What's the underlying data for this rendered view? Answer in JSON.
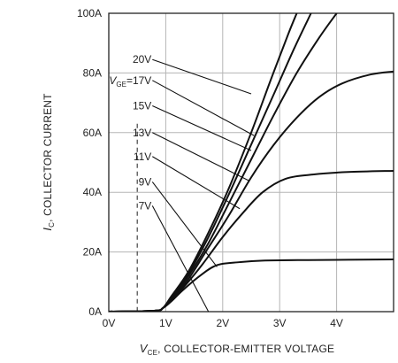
{
  "chart_data": {
    "type": "line",
    "title": "",
    "xlabel": {
      "symbol": "V",
      "subscript": "CE",
      "text": ", COLLECTOR-EMITTER VOLTAGE"
    },
    "ylabel": {
      "symbol": "I",
      "subscript": "C",
      "text": ", COLLECTOR CURRENT"
    },
    "xlim": [
      0,
      5
    ],
    "ylim": [
      0,
      100
    ],
    "xticks": [
      {
        "v": 0,
        "label": "0V"
      },
      {
        "v": 1,
        "label": "1V"
      },
      {
        "v": 2,
        "label": "2V"
      },
      {
        "v": 3,
        "label": "3V"
      },
      {
        "v": 4,
        "label": "4V"
      }
    ],
    "yticks": [
      {
        "v": 0,
        "label": "0A"
      },
      {
        "v": 20,
        "label": "20A"
      },
      {
        "v": 40,
        "label": "40A"
      },
      {
        "v": 60,
        "label": "60A"
      },
      {
        "v": 80,
        "label": "80A"
      },
      {
        "v": 100,
        "label": "100A"
      }
    ],
    "grid": true,
    "dashed_line_x": 0.5,
    "series": [
      {
        "name": "7V",
        "points": [
          [
            0,
            0
          ],
          [
            0.8,
            0.3
          ],
          [
            0.95,
            1.2
          ],
          [
            1.1,
            3.5
          ],
          [
            1.3,
            7.2
          ],
          [
            1.6,
            12
          ],
          [
            1.9,
            15.6
          ],
          [
            2.3,
            16.6
          ],
          [
            2.7,
            17.1
          ],
          [
            3.5,
            17.3
          ],
          [
            5,
            17.5
          ]
        ]
      },
      {
        "name": "9V",
        "points": [
          [
            0,
            0
          ],
          [
            0.8,
            0.3
          ],
          [
            0.95,
            1.2
          ],
          [
            1.1,
            4
          ],
          [
            1.35,
            9
          ],
          [
            1.65,
            16
          ],
          [
            2,
            25
          ],
          [
            2.35,
            33
          ],
          [
            2.7,
            40
          ],
          [
            3.1,
            44.5
          ],
          [
            3.6,
            46
          ],
          [
            4.2,
            46.8
          ],
          [
            5,
            47.2
          ]
        ]
      },
      {
        "name": "11V",
        "points": [
          [
            0,
            0
          ],
          [
            0.8,
            0.3
          ],
          [
            0.95,
            1.2
          ],
          [
            1.1,
            4.3
          ],
          [
            1.4,
            11
          ],
          [
            1.7,
            20
          ],
          [
            2.1,
            32
          ],
          [
            2.5,
            45
          ],
          [
            2.9,
            56
          ],
          [
            3.3,
            65
          ],
          [
            3.7,
            72
          ],
          [
            4.1,
            76.5
          ],
          [
            4.6,
            79.5
          ],
          [
            5,
            80.5
          ]
        ]
      },
      {
        "name": "13V",
        "points": [
          [
            0,
            0
          ],
          [
            0.8,
            0.3
          ],
          [
            0.95,
            1.2
          ],
          [
            1.1,
            4.6
          ],
          [
            1.4,
            12
          ],
          [
            1.75,
            23
          ],
          [
            2.1,
            36
          ],
          [
            2.5,
            51
          ],
          [
            2.9,
            66
          ],
          [
            3.3,
            80
          ],
          [
            3.7,
            92
          ],
          [
            4,
            100
          ]
        ]
      },
      {
        "name": "15V",
        "points": [
          [
            0,
            0
          ],
          [
            0.8,
            0.3
          ],
          [
            0.95,
            1.2
          ],
          [
            1.1,
            4.9
          ],
          [
            1.4,
            12.8
          ],
          [
            1.75,
            25
          ],
          [
            2.1,
            39
          ],
          [
            2.5,
            56
          ],
          [
            2.9,
            73
          ],
          [
            3.25,
            88
          ],
          [
            3.55,
            100
          ]
        ]
      },
      {
        "name": "20V",
        "points": [
          [
            0,
            0
          ],
          [
            0.8,
            0.3
          ],
          [
            0.95,
            1.2
          ],
          [
            1.1,
            5.2
          ],
          [
            1.4,
            13.5
          ],
          [
            1.75,
            26.5
          ],
          [
            2.1,
            41
          ],
          [
            2.5,
            60
          ],
          [
            2.85,
            78
          ],
          [
            3.15,
            93
          ],
          [
            3.3,
            100
          ]
        ]
      }
    ],
    "curve_labels": [
      {
        "text": "20V",
        "at": [
          0.75,
          84.5
        ],
        "to": [
          2.5,
          73
        ]
      },
      {
        "text": "17V",
        "at": [
          0.75,
          77.5
        ],
        "to": [
          2.55,
          59
        ]
      },
      {
        "text": "15V",
        "at": [
          0.75,
          69
        ],
        "to": [
          2.5,
          54
        ]
      },
      {
        "text": "13V",
        "at": [
          0.75,
          60
        ],
        "to": [
          2.45,
          44
        ]
      },
      {
        "text": "11V",
        "at": [
          0.75,
          52
        ],
        "to": [
          2.3,
          34.5
        ]
      },
      {
        "text": "9V",
        "at": [
          0.75,
          43.5
        ],
        "to": [
          1.9,
          15
        ]
      },
      {
        "text": "7V",
        "at": [
          0.75,
          35.5
        ],
        "to": [
          1.75,
          0
        ]
      }
    ],
    "gate_label": {
      "symbol": "V",
      "subscript": "GE",
      "suffix": "="
    }
  }
}
